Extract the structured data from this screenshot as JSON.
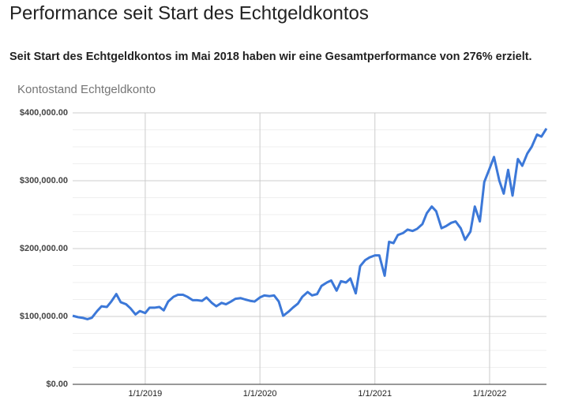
{
  "header": {
    "title": "Performance seit Start des Echtgeldkontos",
    "text": "Seit Start des Echtgeldkontos im Mai 2018 haben wir eine Gesamtperformance von 276% erzielt."
  },
  "chart_data": {
    "type": "line",
    "title": "Kontostand Echtgeldkonto",
    "x": [
      "5/15/2018",
      "6/1/2018",
      "6/15/2018",
      "7/1/2018",
      "7/15/2018",
      "8/1/2018",
      "8/15/2018",
      "9/1/2018",
      "9/15/2018",
      "10/1/2018",
      "10/15/2018",
      "11/1/2018",
      "11/15/2018",
      "12/1/2018",
      "12/15/2018",
      "1/1/2019",
      "1/15/2019",
      "2/1/2019",
      "2/15/2019",
      "3/1/2019",
      "3/15/2019",
      "4/1/2019",
      "4/15/2019",
      "5/1/2019",
      "5/15/2019",
      "6/1/2019",
      "6/15/2019",
      "7/1/2019",
      "7/15/2019",
      "8/1/2019",
      "8/15/2019",
      "9/1/2019",
      "9/15/2019",
      "10/1/2019",
      "10/15/2019",
      "11/1/2019",
      "11/15/2019",
      "12/1/2019",
      "12/15/2019",
      "1/1/2020",
      "1/15/2020",
      "2/1/2020",
      "2/15/2020",
      "3/1/2020",
      "3/15/2020",
      "4/1/2020",
      "4/15/2020",
      "5/1/2020",
      "5/15/2020",
      "6/1/2020",
      "6/15/2020",
      "7/1/2020",
      "7/15/2020",
      "8/1/2020",
      "8/15/2020",
      "9/1/2020",
      "9/15/2020",
      "10/1/2020",
      "10/15/2020",
      "11/1/2020",
      "11/15/2020",
      "12/1/2020",
      "12/15/2020",
      "1/1/2021",
      "1/15/2021",
      "2/1/2021",
      "2/15/2021",
      "3/1/2021",
      "3/15/2021",
      "4/1/2021",
      "4/15/2021",
      "5/1/2021",
      "5/15/2021",
      "6/1/2021",
      "6/15/2021",
      "7/1/2021",
      "7/15/2021",
      "8/1/2021",
      "8/15/2021",
      "9/1/2021",
      "9/15/2021",
      "10/1/2021",
      "10/15/2021",
      "11/1/2021",
      "11/15/2021",
      "12/1/2021",
      "12/15/2021",
      "1/1/2022",
      "1/15/2022",
      "2/1/2022",
      "2/15/2022",
      "3/1/2022",
      "3/15/2022",
      "4/1/2022",
      "4/15/2022",
      "5/1/2022",
      "5/15/2022",
      "6/1/2022",
      "6/15/2022",
      "7/1/2022"
    ],
    "series": [
      {
        "name": "Kontostand Echtgeldkonto",
        "color": "#3c78d8",
        "values": [
          101000,
          99000,
          98000,
          96000,
          98000,
          108000,
          115000,
          114000,
          122000,
          133000,
          121000,
          118000,
          112000,
          103000,
          108000,
          105000,
          113000,
          113000,
          114000,
          109000,
          122000,
          129000,
          132000,
          132000,
          129000,
          124000,
          124000,
          123000,
          128000,
          120000,
          115000,
          120000,
          118000,
          122000,
          126000,
          127000,
          125000,
          123000,
          122000,
          128000,
          131000,
          130000,
          131000,
          122000,
          101000,
          107000,
          113000,
          119000,
          129000,
          136000,
          131000,
          133000,
          145000,
          150000,
          153000,
          138000,
          152000,
          150000,
          156000,
          134000,
          174000,
          183000,
          187000,
          190000,
          190000,
          160000,
          210000,
          208000,
          220000,
          223000,
          228000,
          226000,
          229000,
          236000,
          252000,
          262000,
          255000,
          230000,
          233000,
          238000,
          240000,
          230000,
          213000,
          225000,
          262000,
          240000,
          298000,
          318000,
          335000,
          300000,
          281000,
          316000,
          278000,
          332000,
          322000,
          340000,
          350000,
          368000,
          365000,
          377000
        ]
      }
    ],
    "xlim": [
      "5/15/2018",
      "7/1/2022"
    ],
    "xticks": [
      "1/1/2019",
      "1/1/2020",
      "1/1/2021",
      "1/1/2022"
    ],
    "ylim": [
      0,
      400000
    ],
    "yticks": [
      {
        "value": 0,
        "label": "$0.00"
      },
      {
        "value": 100000,
        "label": "$100,000.00"
      },
      {
        "value": 200000,
        "label": "$200,000.00"
      },
      {
        "value": 300000,
        "label": "$300,000.00"
      },
      {
        "value": 400000,
        "label": "$400,000.00"
      }
    ],
    "minor_yticks": [
      25000,
      50000,
      75000,
      125000,
      150000,
      175000,
      225000,
      250000,
      275000,
      325000,
      350000,
      375000
    ],
    "grid": true
  }
}
